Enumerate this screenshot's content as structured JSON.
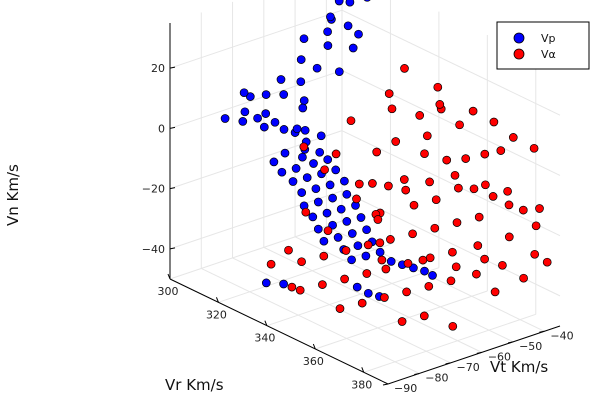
{
  "chart_data": {
    "type": "scatter",
    "projection": "3d",
    "xlabel": "Vr Km/s",
    "ylabel": "Vt Km/s",
    "zlabel": "Vn Km/s",
    "xlim": [
      300,
      390
    ],
    "ylim": [
      -90,
      -35
    ],
    "zlim": [
      -50,
      35
    ],
    "xticks": [
      300,
      320,
      340,
      360,
      380
    ],
    "yticks": [
      -90,
      -80,
      -70,
      -60,
      -50,
      -40
    ],
    "zticks": [
      -40,
      -20,
      0,
      20
    ],
    "grid": true,
    "legend_position": "top-right",
    "series": [
      {
        "name": "Vp",
        "color": "#0000ff",
        "points": [
          [
            306,
            -38,
            30
          ],
          [
            308,
            -40,
            31
          ],
          [
            311,
            -41,
            29
          ],
          [
            304,
            -39,
            26
          ],
          [
            313,
            -37,
            30
          ],
          [
            309,
            -43,
            33
          ],
          [
            315,
            -50,
            28
          ],
          [
            312,
            -48,
            27
          ],
          [
            318,
            -47,
            26
          ],
          [
            316,
            -52,
            25
          ],
          [
            321,
            -46,
            24
          ],
          [
            320,
            -55,
            23
          ],
          [
            324,
            -50,
            22
          ],
          [
            314,
            -58,
            24
          ],
          [
            318,
            -62,
            20
          ],
          [
            322,
            -60,
            18
          ],
          [
            326,
            -56,
            17
          ],
          [
            323,
            -66,
            16
          ],
          [
            320,
            -70,
            17
          ],
          [
            325,
            -73,
            15
          ],
          [
            319,
            -74,
            13
          ],
          [
            327,
            -68,
            12
          ],
          [
            329,
            -70,
            11
          ],
          [
            324,
            -78,
            10
          ],
          [
            318,
            -80,
            9
          ],
          [
            315,
            -84,
            7
          ],
          [
            321,
            -83,
            8
          ],
          [
            326,
            -80,
            7
          ],
          [
            329,
            -76,
            6
          ],
          [
            331,
            -74,
            5
          ],
          [
            330,
            -70,
            4
          ],
          [
            334,
            -68,
            3
          ],
          [
            333,
            -72,
            2
          ],
          [
            335,
            -74,
            1
          ],
          [
            332,
            -78,
            0
          ],
          [
            336,
            -70,
            -1
          ],
          [
            334,
            -74,
            -2
          ],
          [
            330,
            -80,
            -3
          ],
          [
            338,
            -69,
            -3
          ],
          [
            336,
            -72,
            -4
          ],
          [
            334,
            -76,
            -5
          ],
          [
            332,
            -79,
            -6
          ],
          [
            340,
            -68,
            -6
          ],
          [
            338,
            -71,
            -7
          ],
          [
            336,
            -74,
            -8
          ],
          [
            334,
            -77,
            -9
          ],
          [
            341,
            -66,
            -10
          ],
          [
            339,
            -69,
            -11
          ],
          [
            337,
            -72,
            -12
          ],
          [
            335,
            -75,
            -13
          ],
          [
            342,
            -66,
            -14
          ],
          [
            340,
            -69,
            -15
          ],
          [
            338,
            -72,
            -16
          ],
          [
            336,
            -75,
            -17
          ],
          [
            343,
            -64,
            -18
          ],
          [
            341,
            -67,
            -19
          ],
          [
            339,
            -70,
            -20
          ],
          [
            337,
            -73,
            -21
          ],
          [
            344,
            -63,
            -22
          ],
          [
            342,
            -66,
            -23
          ],
          [
            340,
            -69,
            -24
          ],
          [
            338,
            -72,
            -25
          ],
          [
            345,
            -62,
            -26
          ],
          [
            343,
            -65,
            -27
          ],
          [
            341,
            -68,
            -28
          ],
          [
            339,
            -71,
            -29
          ],
          [
            346,
            -61,
            -30
          ],
          [
            344,
            -64,
            -31
          ],
          [
            342,
            -67,
            -32
          ],
          [
            348,
            -60,
            -33
          ],
          [
            346,
            -63,
            -34
          ],
          [
            344,
            -66,
            -35
          ],
          [
            350,
            -58,
            -36
          ],
          [
            352,
            -56,
            -37
          ],
          [
            354,
            -54,
            -38
          ],
          [
            356,
            -52,
            -39
          ],
          [
            358,
            -51,
            -40
          ],
          [
            334,
            -80,
            -42
          ],
          [
            332,
            -84,
            -41
          ],
          [
            345,
            -65,
            -44
          ],
          [
            347,
            -63,
            -46
          ],
          [
            349,
            -61,
            -47
          ],
          [
            331,
            -86,
            14
          ],
          [
            328,
            -86,
            20
          ],
          [
            328,
            -88,
            22
          ],
          [
            333,
            -82,
            12
          ],
          [
            337,
            -78,
            10
          ]
        ]
      },
      {
        "name": "Vα",
        "color": "#ff0000",
        "points": [
          [
            340,
            -50,
            8
          ],
          [
            345,
            -45,
            6
          ],
          [
            350,
            -42,
            9
          ],
          [
            355,
            -40,
            5
          ],
          [
            352,
            -48,
            3
          ],
          [
            348,
            -55,
            2
          ],
          [
            356,
            -52,
            0
          ],
          [
            360,
            -48,
            -2
          ],
          [
            364,
            -45,
            -1
          ],
          [
            368,
            -42,
            1
          ],
          [
            372,
            -40,
            3
          ],
          [
            366,
            -50,
            -4
          ],
          [
            362,
            -55,
            -6
          ],
          [
            358,
            -60,
            -5
          ],
          [
            354,
            -62,
            -8
          ],
          [
            370,
            -47,
            -8
          ],
          [
            374,
            -44,
            -10
          ],
          [
            378,
            -42,
            -12
          ],
          [
            380,
            -39,
            -14
          ],
          [
            376,
            -50,
            -14
          ],
          [
            372,
            -54,
            -16
          ],
          [
            368,
            -58,
            -18
          ],
          [
            364,
            -62,
            -20
          ],
          [
            360,
            -66,
            -22
          ],
          [
            356,
            -70,
            -24
          ],
          [
            352,
            -74,
            -26
          ],
          [
            348,
            -78,
            -28
          ],
          [
            344,
            -82,
            -30
          ],
          [
            384,
            -38,
            -18
          ],
          [
            382,
            -45,
            -20
          ],
          [
            378,
            -52,
            -22
          ],
          [
            374,
            -57,
            -24
          ],
          [
            370,
            -61,
            -26
          ],
          [
            366,
            -65,
            -28
          ],
          [
            362,
            -69,
            -30
          ],
          [
            358,
            -72,
            -32
          ],
          [
            354,
            -76,
            -34
          ],
          [
            350,
            -80,
            -36
          ],
          [
            346,
            -84,
            -38
          ],
          [
            386,
            -40,
            -26
          ],
          [
            383,
            -48,
            -28
          ],
          [
            380,
            -54,
            -30
          ],
          [
            376,
            -59,
            -32
          ],
          [
            372,
            -63,
            -34
          ],
          [
            368,
            -67,
            -36
          ],
          [
            364,
            -71,
            -38
          ],
          [
            360,
            -75,
            -40
          ],
          [
            356,
            -79,
            -42
          ],
          [
            342,
            -62,
            -12
          ],
          [
            346,
            -66,
            -14
          ],
          [
            338,
            -70,
            -6
          ],
          [
            335,
            -64,
            -4
          ],
          [
            344,
            -58,
            -2
          ],
          [
            350,
            -64,
            -8
          ],
          [
            356,
            -58,
            -10
          ],
          [
            362,
            -60,
            -12
          ],
          [
            366,
            -56,
            -10
          ],
          [
            370,
            -52,
            -6
          ],
          [
            376,
            -48,
            -4
          ],
          [
            380,
            -44,
            -6
          ],
          [
            388,
            -40,
            -10
          ],
          [
            386,
            -36,
            -30
          ],
          [
            384,
            -42,
            -34
          ],
          [
            380,
            -48,
            -38
          ],
          [
            352,
            -44,
            12
          ],
          [
            346,
            -40,
            14
          ],
          [
            358,
            -38,
            10
          ],
          [
            364,
            -36,
            8
          ],
          [
            340,
            -46,
            20
          ],
          [
            344,
            -54,
            16
          ],
          [
            372,
            -36,
            6
          ],
          [
            378,
            -34,
            4
          ],
          [
            348,
            -60,
            -20
          ],
          [
            354,
            -66,
            -16
          ],
          [
            360,
            -70,
            -14
          ],
          [
            366,
            -74,
            -18
          ],
          [
            372,
            -78,
            -20
          ],
          [
            376,
            -68,
            -22
          ],
          [
            382,
            -62,
            -24
          ],
          [
            386,
            -56,
            -22
          ],
          [
            342,
            -72,
            -24
          ],
          [
            338,
            -76,
            -18
          ],
          [
            336,
            -80,
            -30
          ],
          [
            334,
            -84,
            -34
          ],
          [
            340,
            -82,
            -40
          ],
          [
            370,
            -70,
            -44
          ],
          [
            374,
            -66,
            -42
          ],
          [
            378,
            -60,
            -46
          ],
          [
            332,
            -72,
            0
          ],
          [
            336,
            -60,
            6
          ]
        ]
      }
    ]
  }
}
